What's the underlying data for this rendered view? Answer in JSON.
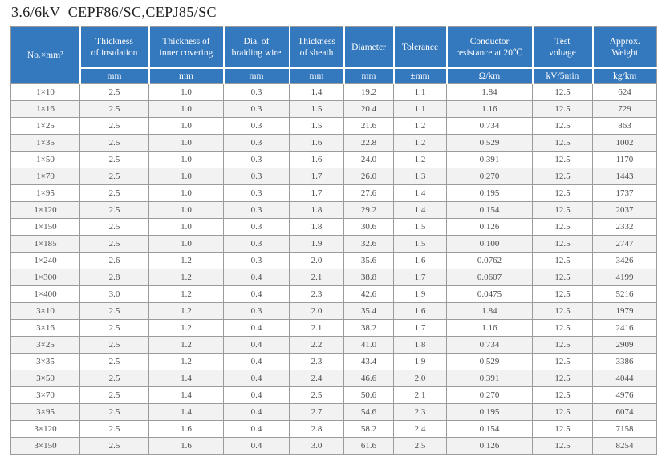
{
  "page_title": "3.6/6kV  CEPF86/SC,CEPJ85/SC",
  "colors": {
    "header_bg": "#3478bd",
    "header_text": "#ffffff",
    "row_alt": "#f2f2f2",
    "grid_border": "#9b9b9b",
    "data_text": "#4d4d4d",
    "title_text": "#1f1f1f"
  },
  "table": {
    "columns": [
      {
        "label": "No.×mm²",
        "unit": ""
      },
      {
        "label": "Thickness\nof insulation",
        "unit": "mm"
      },
      {
        "label": "Thickness of\ninner covering",
        "unit": "mm"
      },
      {
        "label": "Dia. of\nbraiding wire",
        "unit": "mm"
      },
      {
        "label": "Thickness\nof sheath",
        "unit": "mm"
      },
      {
        "label": "Diameter",
        "unit": "mm"
      },
      {
        "label": "Tolerance",
        "unit": "±mm"
      },
      {
        "label": "Conductor\nresistance at 20℃",
        "unit": "Ω/km"
      },
      {
        "label": "Test\nvoltage",
        "unit": "kV/5min"
      },
      {
        "label": "Approx.\nWeight",
        "unit": "kg/km"
      }
    ],
    "rows": [
      [
        "1×10",
        "2.5",
        "1.0",
        "0.3",
        "1.4",
        "19.2",
        "1.1",
        "1.84",
        "12.5",
        "624"
      ],
      [
        "1×16",
        "2.5",
        "1.0",
        "0.3",
        "1.5",
        "20.4",
        "1.1",
        "1.16",
        "12.5",
        "729"
      ],
      [
        "1×25",
        "2.5",
        "1.0",
        "0.3",
        "1.5",
        "21.6",
        "1.2",
        "0.734",
        "12.5",
        "863"
      ],
      [
        "1×35",
        "2.5",
        "1.0",
        "0.3",
        "1.6",
        "22.8",
        "1.2",
        "0.529",
        "12.5",
        "1002"
      ],
      [
        "1×50",
        "2.5",
        "1.0",
        "0.3",
        "1.6",
        "24.0",
        "1.2",
        "0.391",
        "12.5",
        "1170"
      ],
      [
        "1×70",
        "2.5",
        "1.0",
        "0.3",
        "1.7",
        "26.0",
        "1.3",
        "0.270",
        "12.5",
        "1443"
      ],
      [
        "1×95",
        "2.5",
        "1.0",
        "0.3",
        "1.7",
        "27.6",
        "1.4",
        "0.195",
        "12.5",
        "1737"
      ],
      [
        "1×120",
        "2.5",
        "1.0",
        "0.3",
        "1.8",
        "29.2",
        "1.4",
        "0.154",
        "12.5",
        "2037"
      ],
      [
        "1×150",
        "2.5",
        "1.0",
        "0.3",
        "1.8",
        "30.6",
        "1.5",
        "0.126",
        "12.5",
        "2332"
      ],
      [
        "1×185",
        "2.5",
        "1.0",
        "0.3",
        "1.9",
        "32.6",
        "1.5",
        "0.100",
        "12.5",
        "2747"
      ],
      [
        "1×240",
        "2.6",
        "1.2",
        "0.3",
        "2.0",
        "35.6",
        "1.6",
        "0.0762",
        "12.5",
        "3426"
      ],
      [
        "1×300",
        "2.8",
        "1.2",
        "0.4",
        "2.1",
        "38.8",
        "1.7",
        "0.0607",
        "12.5",
        "4199"
      ],
      [
        "1×400",
        "3.0",
        "1.2",
        "0.4",
        "2.3",
        "42.6",
        "1.9",
        "0.0475",
        "12.5",
        "5216"
      ],
      [
        "3×10",
        "2.5",
        "1.2",
        "0.3",
        "2.0",
        "35.4",
        "1.6",
        "1.84",
        "12.5",
        "1979"
      ],
      [
        "3×16",
        "2.5",
        "1.2",
        "0.4",
        "2.1",
        "38.2",
        "1.7",
        "1.16",
        "12.5",
        "2416"
      ],
      [
        "3×25",
        "2.5",
        "1.2",
        "0.4",
        "2.2",
        "41.0",
        "1.8",
        "0.734",
        "12.5",
        "2909"
      ],
      [
        "3×35",
        "2.5",
        "1.2",
        "0.4",
        "2.3",
        "43.4",
        "1.9",
        "0.529",
        "12.5",
        "3386"
      ],
      [
        "3×50",
        "2.5",
        "1.4",
        "0.4",
        "2.4",
        "46.6",
        "2.0",
        "0.391",
        "12.5",
        "4044"
      ],
      [
        "3×70",
        "2.5",
        "1.4",
        "0.4",
        "2.5",
        "50.6",
        "2.1",
        "0.270",
        "12.5",
        "4976"
      ],
      [
        "3×95",
        "2.5",
        "1.4",
        "0.4",
        "2.7",
        "54.6",
        "2.3",
        "0.195",
        "12.5",
        "6074"
      ],
      [
        "3×120",
        "2.5",
        "1.6",
        "0.4",
        "2.8",
        "58.2",
        "2.4",
        "0.154",
        "12.5",
        "7158"
      ],
      [
        "3×150",
        "2.5",
        "1.6",
        "0.4",
        "3.0",
        "61.6",
        "2.5",
        "0.126",
        "12.5",
        "8254"
      ]
    ]
  }
}
